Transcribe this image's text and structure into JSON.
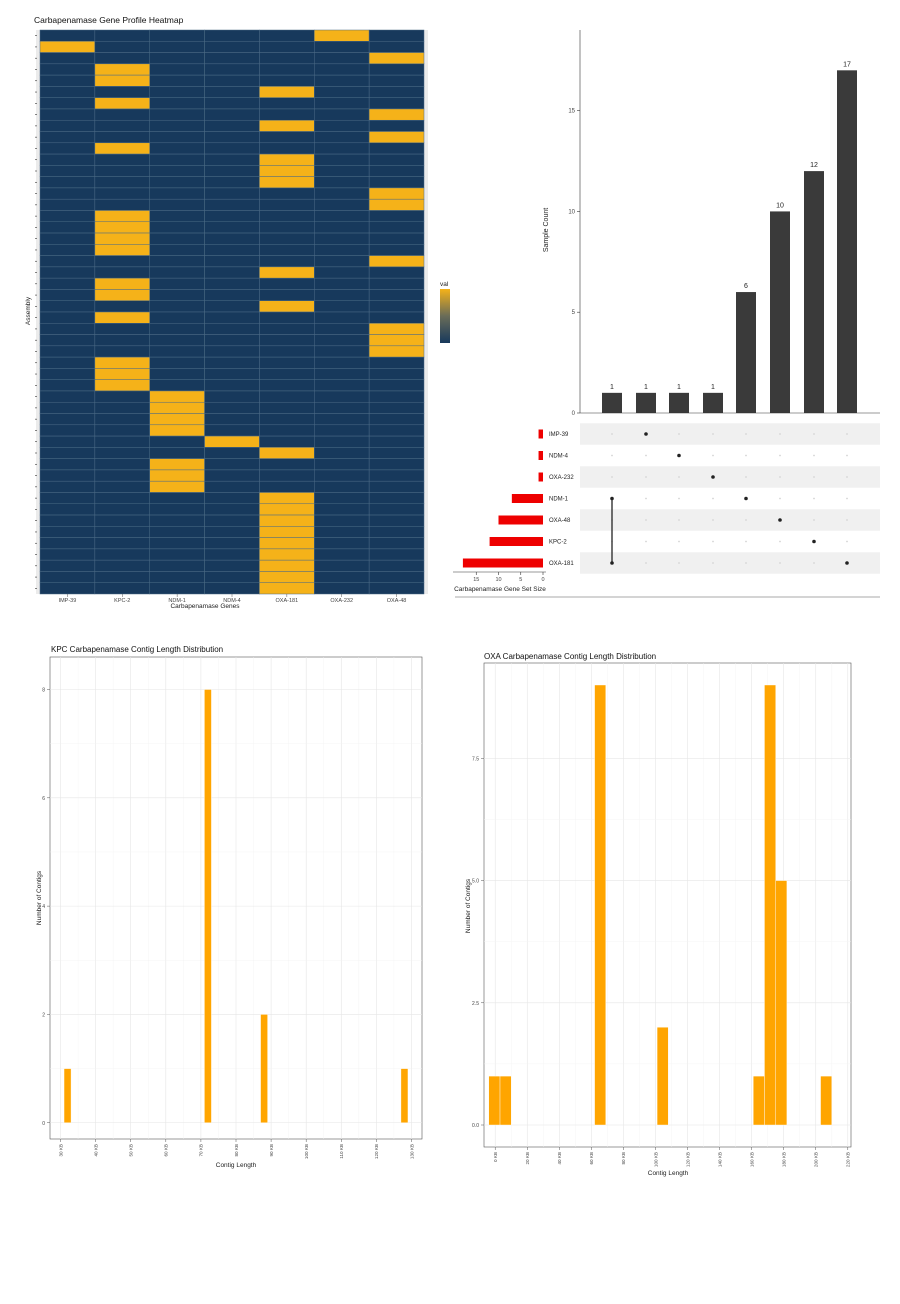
{
  "chart_data": [
    {
      "type": "heatmap",
      "title": "Carbapenamase Gene Profile Heatmap",
      "xlabel": "Carbapenamase Genes",
      "ylabel": "Assembly",
      "legend_title": "val",
      "genes": [
        "IMP-39",
        "KPC-2",
        "NDM-1",
        "NDM-4",
        "OXA-181",
        "OXA-232",
        "OXA-48"
      ],
      "rows": 50,
      "presence": [
        [
          5
        ],
        [
          0
        ],
        [
          6
        ],
        [
          1
        ],
        [
          1
        ],
        [
          4
        ],
        [
          1
        ],
        [
          6
        ],
        [
          4
        ],
        [
          6
        ],
        [
          1
        ],
        [
          4
        ],
        [
          4
        ],
        [
          4
        ],
        [
          6
        ],
        [
          6
        ],
        [
          1
        ],
        [
          1
        ],
        [
          1
        ],
        [
          1
        ],
        [
          6
        ],
        [
          4
        ],
        [
          1
        ],
        [
          1
        ],
        [
          4
        ],
        [
          1
        ],
        [
          6
        ],
        [
          6
        ],
        [
          6
        ],
        [
          1
        ],
        [
          1
        ],
        [
          1
        ],
        [
          2
        ],
        [
          2
        ],
        [
          2
        ],
        [
          2
        ],
        [
          3
        ],
        [
          4
        ],
        [
          2
        ],
        [
          2
        ],
        [
          2
        ],
        [
          4
        ],
        [
          4
        ],
        [
          4
        ],
        [
          4
        ],
        [
          4
        ],
        [
          4
        ],
        [
          4
        ],
        [
          4
        ],
        [
          4
        ]
      ],
      "colors": {
        "absent": "#17395c",
        "present": "#f5b219",
        "grid": "#4c6b86"
      }
    },
    {
      "type": "bar",
      "subtype": "upset",
      "ylabel": "Sample Count",
      "yticks": [
        0,
        5,
        10,
        15
      ],
      "ylim": [
        0,
        19
      ],
      "intersections": [
        {
          "count": 1,
          "sets": [
            "NDM-1",
            "OXA-181"
          ]
        },
        {
          "count": 1,
          "sets": [
            "IMP-39"
          ]
        },
        {
          "count": 1,
          "sets": [
            "NDM-4"
          ]
        },
        {
          "count": 1,
          "sets": [
            "OXA-232"
          ]
        },
        {
          "count": 6,
          "sets": [
            "NDM-1"
          ]
        },
        {
          "count": 10,
          "sets": [
            "OXA-48"
          ]
        },
        {
          "count": 12,
          "sets": [
            "KPC-2"
          ]
        },
        {
          "count": 17,
          "sets": [
            "OXA-181"
          ]
        }
      ],
      "set_names": [
        "IMP-39",
        "NDM-4",
        "OXA-232",
        "NDM-1",
        "OXA-48",
        "KPC-2",
        "OXA-181"
      ],
      "set_sizes": [
        1,
        1,
        1,
        7,
        10,
        12,
        18
      ],
      "set_size_label": "Carbapenamase Gene Set Size",
      "set_size_ticks": [
        15,
        10,
        5,
        0
      ],
      "colors": {
        "bar": "#3a3a3a",
        "set_bar": "#ee0000",
        "dot": "#222222"
      }
    },
    {
      "type": "bar",
      "title": "KPC Carbapenamase Contig Length Distribution",
      "xlabel": "Contig Length",
      "ylabel": "Number of Contigs",
      "xticks": [
        "30 KB",
        "40 KB",
        "50 KB",
        "60 KB",
        "70 KB",
        "80 KB",
        "90 KB",
        "100 KB",
        "110 KB",
        "120 KB",
        "130 KB"
      ],
      "xlim": [
        27000,
        133000
      ],
      "yticks": [
        0,
        2,
        4,
        6,
        8
      ],
      "ylim": [
        -0.3,
        8.6
      ],
      "bins": [
        {
          "start": 31000,
          "end": 33000,
          "count": 1
        },
        {
          "start": 71000,
          "end": 73000,
          "count": 8
        },
        {
          "start": 87000,
          "end": 89000,
          "count": 2
        },
        {
          "start": 127000,
          "end": 129000,
          "count": 1
        }
      ],
      "color": "#ffa500"
    },
    {
      "type": "bar",
      "title": "OXA Carbapenamase Contig Length Distribution",
      "xlabel": "Contig Length",
      "ylabel": "Number of Contigs",
      "xticks": [
        "0 KB",
        "20 KB",
        "40 KB",
        "60 KB",
        "80 KB",
        "100 KB",
        "120 KB",
        "140 KB",
        "160 KB",
        "180 KB",
        "200 KB",
        "220 KB"
      ],
      "xlim": [
        -7000,
        222000
      ],
      "yticks": [
        0.0,
        2.5,
        5.0,
        7.5
      ],
      "yticklabels": [
        "0.0",
        "2.5",
        "5.0",
        "7.5"
      ],
      "ylim": [
        -0.45,
        9.45
      ],
      "bins": [
        {
          "start": -4000,
          "end": 3000,
          "count": 1
        },
        {
          "start": 3000,
          "end": 10000,
          "count": 1
        },
        {
          "start": 62000,
          "end": 69000,
          "count": 9
        },
        {
          "start": 101000,
          "end": 108000,
          "count": 2
        },
        {
          "start": 161000,
          "end": 168000,
          "count": 1
        },
        {
          "start": 168000,
          "end": 175000,
          "count": 9
        },
        {
          "start": 175000,
          "end": 182000,
          "count": 5
        },
        {
          "start": 203000,
          "end": 210000,
          "count": 1
        }
      ],
      "color": "#ffa500"
    }
  ]
}
